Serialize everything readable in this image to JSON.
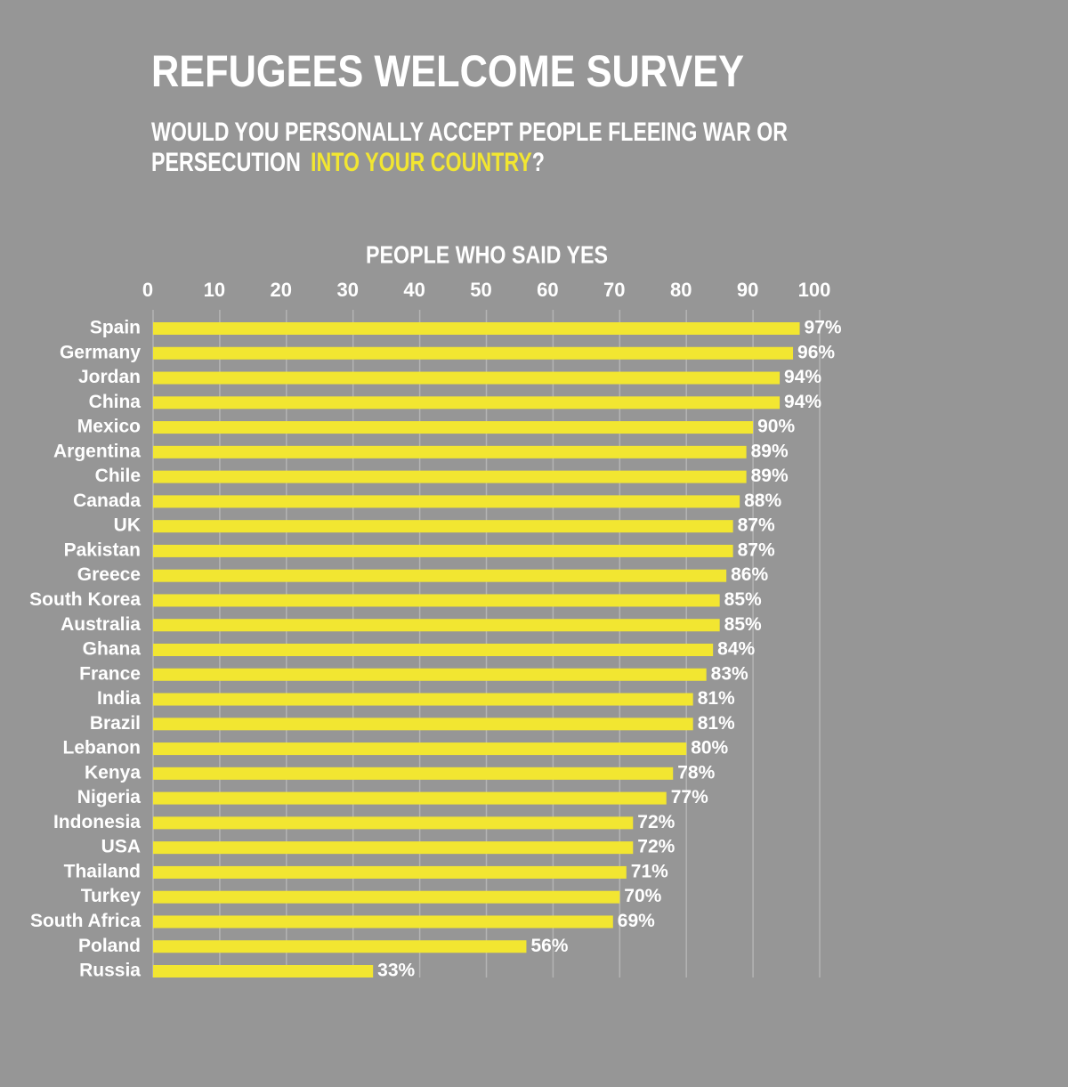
{
  "chart_data": {
    "type": "hbar",
    "title": "REFUGEES WELCOME SURVEY",
    "subtitle": {
      "line1": "WOULD YOU PERSONALLY ACCEPT PEOPLE FLEEING WAR OR",
      "line2_before": "PERSECUTION",
      "highlight": "INTO YOUR COUNTRY",
      "line2_after": "?"
    },
    "highlight_color": "#f2e631",
    "x_axis_label": "PEOPLE WHO SAID YES",
    "categories": [
      "Spain",
      "Germany",
      "Jordan",
      "China",
      "Mexico",
      "Argentina",
      "Chile",
      "Canada",
      "UK",
      "Pakistan",
      "Greece",
      "South Korea",
      "Australia",
      "Ghana",
      "France",
      "India",
      "Brazil",
      "Lebanon",
      "Kenya",
      "Nigeria",
      "Indonesia",
      "USA",
      "Thailand",
      "Turkey",
      "South Africa",
      "Poland",
      "Russia"
    ],
    "values": [
      97,
      96,
      94,
      94,
      90,
      89,
      89,
      88,
      87,
      87,
      86,
      85,
      85,
      84,
      83,
      81,
      81,
      80,
      78,
      77,
      72,
      72,
      71,
      70,
      69,
      56,
      33
    ],
    "value_labels": [
      "97%",
      "96%",
      "94%",
      "94%",
      "90%",
      "89%",
      "89%",
      "88%",
      "87%",
      "87%",
      "86%",
      "85%",
      "85%",
      "84%",
      "83%",
      "81%",
      "81%",
      "80%",
      "78%",
      "77%",
      "72%",
      "72%",
      "71%",
      "70%",
      "69%",
      "56%",
      "33%"
    ],
    "color": "#f2e631",
    "xlim": [
      0,
      100
    ],
    "xticks": [
      0,
      10,
      20,
      30,
      40,
      50,
      60,
      70,
      80,
      90,
      100
    ],
    "grid": true
  }
}
